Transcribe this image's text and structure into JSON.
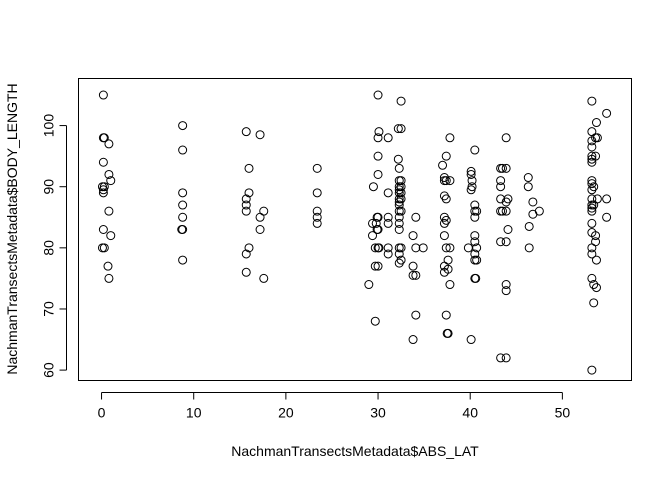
{
  "chart_data": {
    "type": "scatter",
    "title": "",
    "xlabel": "NachmanTransectsMetadata$ABS_LAT",
    "ylabel": "NachmanTransectsMetadata$BODY_LENGTH",
    "xlim": [
      -2.5,
      57.5
    ],
    "ylim": [
      58.3,
      107.7
    ],
    "xticks": [
      0,
      10,
      20,
      30,
      40,
      50
    ],
    "yticks": [
      60,
      70,
      80,
      90,
      100
    ],
    "grid": false,
    "legend": "none",
    "points": [
      {
        "x": 0.2,
        "y": 105
      },
      {
        "x": 0.2,
        "y": 98
      },
      {
        "x": 0.3,
        "y": 98
      },
      {
        "x": 0.2,
        "y": 94
      },
      {
        "x": 0.1,
        "y": 90
      },
      {
        "x": 0.2,
        "y": 89.5
      },
      {
        "x": 0.3,
        "y": 90
      },
      {
        "x": 0.2,
        "y": 89
      },
      {
        "x": 0.2,
        "y": 83
      },
      {
        "x": 0.1,
        "y": 80
      },
      {
        "x": 0.3,
        "y": 80
      },
      {
        "x": 0.8,
        "y": 97
      },
      {
        "x": 0.8,
        "y": 92
      },
      {
        "x": 1.0,
        "y": 91
      },
      {
        "x": 0.8,
        "y": 86
      },
      {
        "x": 1.0,
        "y": 82
      },
      {
        "x": 0.7,
        "y": 77
      },
      {
        "x": 0.8,
        "y": 75
      },
      {
        "x": 8.8,
        "y": 100
      },
      {
        "x": 8.8,
        "y": 96
      },
      {
        "x": 8.8,
        "y": 89
      },
      {
        "x": 8.8,
        "y": 87
      },
      {
        "x": 8.8,
        "y": 85
      },
      {
        "x": 8.7,
        "y": 83
      },
      {
        "x": 8.8,
        "y": 83
      },
      {
        "x": 8.8,
        "y": 78
      },
      {
        "x": 15.7,
        "y": 99
      },
      {
        "x": 15.7,
        "y": 88
      },
      {
        "x": 15.7,
        "y": 87
      },
      {
        "x": 15.7,
        "y": 86
      },
      {
        "x": 15.7,
        "y": 79
      },
      {
        "x": 15.7,
        "y": 76
      },
      {
        "x": 16.0,
        "y": 93
      },
      {
        "x": 16.0,
        "y": 89
      },
      {
        "x": 16.0,
        "y": 80
      },
      {
        "x": 17.2,
        "y": 98.5
      },
      {
        "x": 17.2,
        "y": 85
      },
      {
        "x": 17.2,
        "y": 83
      },
      {
        "x": 17.6,
        "y": 86
      },
      {
        "x": 17.6,
        "y": 75
      },
      {
        "x": 23.4,
        "y": 93
      },
      {
        "x": 23.4,
        "y": 89
      },
      {
        "x": 23.4,
        "y": 86
      },
      {
        "x": 23.4,
        "y": 85
      },
      {
        "x": 23.4,
        "y": 84
      },
      {
        "x": 29.0,
        "y": 74
      },
      {
        "x": 29.4,
        "y": 84
      },
      {
        "x": 29.4,
        "y": 82
      },
      {
        "x": 29.5,
        "y": 90
      },
      {
        "x": 29.7,
        "y": 68
      },
      {
        "x": 29.7,
        "y": 80
      },
      {
        "x": 29.7,
        "y": 77
      },
      {
        "x": 29.8,
        "y": 84
      },
      {
        "x": 29.9,
        "y": 85
      },
      {
        "x": 29.9,
        "y": 83
      },
      {
        "x": 30.0,
        "y": 105
      },
      {
        "x": 30.0,
        "y": 98
      },
      {
        "x": 30.0,
        "y": 95
      },
      {
        "x": 30.0,
        "y": 92
      },
      {
        "x": 30.0,
        "y": 85
      },
      {
        "x": 30.0,
        "y": 83
      },
      {
        "x": 30.0,
        "y": 80
      },
      {
        "x": 30.0,
        "y": 77
      },
      {
        "x": 30.1,
        "y": 99
      },
      {
        "x": 30.1,
        "y": 80
      },
      {
        "x": 31.1,
        "y": 98
      },
      {
        "x": 31.1,
        "y": 89
      },
      {
        "x": 31.1,
        "y": 85
      },
      {
        "x": 31.1,
        "y": 84
      },
      {
        "x": 31.1,
        "y": 80
      },
      {
        "x": 31.1,
        "y": 79
      },
      {
        "x": 32.2,
        "y": 99.5
      },
      {
        "x": 32.2,
        "y": 94.5
      },
      {
        "x": 32.3,
        "y": 93
      },
      {
        "x": 32.3,
        "y": 91
      },
      {
        "x": 32.3,
        "y": 90
      },
      {
        "x": 32.3,
        "y": 89.5
      },
      {
        "x": 32.3,
        "y": 89
      },
      {
        "x": 32.3,
        "y": 88
      },
      {
        "x": 32.3,
        "y": 87.5
      },
      {
        "x": 32.3,
        "y": 87
      },
      {
        "x": 32.3,
        "y": 86
      },
      {
        "x": 32.3,
        "y": 85
      },
      {
        "x": 32.3,
        "y": 84
      },
      {
        "x": 32.3,
        "y": 83
      },
      {
        "x": 32.3,
        "y": 80
      },
      {
        "x": 32.3,
        "y": 79
      },
      {
        "x": 32.3,
        "y": 77.5
      },
      {
        "x": 32.5,
        "y": 99.5
      },
      {
        "x": 32.5,
        "y": 104
      },
      {
        "x": 32.5,
        "y": 91
      },
      {
        "x": 32.5,
        "y": 90
      },
      {
        "x": 32.5,
        "y": 89
      },
      {
        "x": 32.5,
        "y": 88
      },
      {
        "x": 32.5,
        "y": 86
      },
      {
        "x": 32.5,
        "y": 80
      },
      {
        "x": 32.5,
        "y": 78
      },
      {
        "x": 33.8,
        "y": 82
      },
      {
        "x": 33.8,
        "y": 77
      },
      {
        "x": 33.8,
        "y": 75.5
      },
      {
        "x": 33.8,
        "y": 65
      },
      {
        "x": 34.1,
        "y": 85
      },
      {
        "x": 34.1,
        "y": 80
      },
      {
        "x": 34.1,
        "y": 75.5
      },
      {
        "x": 34.1,
        "y": 69
      },
      {
        "x": 34.9,
        "y": 80
      },
      {
        "x": 37.0,
        "y": 93.5
      },
      {
        "x": 37.2,
        "y": 91.5
      },
      {
        "x": 37.2,
        "y": 91
      },
      {
        "x": 37.2,
        "y": 88.5
      },
      {
        "x": 37.2,
        "y": 85
      },
      {
        "x": 37.2,
        "y": 84
      },
      {
        "x": 37.2,
        "y": 82
      },
      {
        "x": 37.2,
        "y": 77
      },
      {
        "x": 37.2,
        "y": 76
      },
      {
        "x": 37.4,
        "y": 95
      },
      {
        "x": 37.4,
        "y": 91
      },
      {
        "x": 37.4,
        "y": 88
      },
      {
        "x": 37.4,
        "y": 84.5
      },
      {
        "x": 37.4,
        "y": 80
      },
      {
        "x": 37.4,
        "y": 69
      },
      {
        "x": 37.5,
        "y": 66
      },
      {
        "x": 37.6,
        "y": 66
      },
      {
        "x": 37.6,
        "y": 78
      },
      {
        "x": 37.6,
        "y": 76.5
      },
      {
        "x": 37.8,
        "y": 98
      },
      {
        "x": 37.8,
        "y": 91
      },
      {
        "x": 37.8,
        "y": 80
      },
      {
        "x": 37.8,
        "y": 74
      },
      {
        "x": 39.8,
        "y": 80
      },
      {
        "x": 40.1,
        "y": 92.5
      },
      {
        "x": 40.1,
        "y": 92
      },
      {
        "x": 40.1,
        "y": 89.5
      },
      {
        "x": 40.1,
        "y": 65
      },
      {
        "x": 40.2,
        "y": 91
      },
      {
        "x": 40.2,
        "y": 90
      },
      {
        "x": 40.5,
        "y": 96
      },
      {
        "x": 40.5,
        "y": 87
      },
      {
        "x": 40.5,
        "y": 86
      },
      {
        "x": 40.5,
        "y": 85
      },
      {
        "x": 40.5,
        "y": 82
      },
      {
        "x": 40.5,
        "y": 81
      },
      {
        "x": 40.5,
        "y": 79
      },
      {
        "x": 40.5,
        "y": 78
      },
      {
        "x": 40.5,
        "y": 75
      },
      {
        "x": 40.6,
        "y": 75
      },
      {
        "x": 40.7,
        "y": 86
      },
      {
        "x": 40.7,
        "y": 80
      },
      {
        "x": 40.7,
        "y": 78
      },
      {
        "x": 43.3,
        "y": 93
      },
      {
        "x": 43.3,
        "y": 91
      },
      {
        "x": 43.3,
        "y": 90
      },
      {
        "x": 43.3,
        "y": 88
      },
      {
        "x": 43.3,
        "y": 86
      },
      {
        "x": 43.3,
        "y": 81
      },
      {
        "x": 43.3,
        "y": 62
      },
      {
        "x": 43.5,
        "y": 93
      },
      {
        "x": 43.5,
        "y": 86
      },
      {
        "x": 43.9,
        "y": 98
      },
      {
        "x": 43.9,
        "y": 93
      },
      {
        "x": 43.9,
        "y": 87.5
      },
      {
        "x": 43.9,
        "y": 86
      },
      {
        "x": 43.9,
        "y": 81
      },
      {
        "x": 43.9,
        "y": 74
      },
      {
        "x": 43.9,
        "y": 73
      },
      {
        "x": 43.9,
        "y": 62
      },
      {
        "x": 44.1,
        "y": 88
      },
      {
        "x": 44.1,
        "y": 83
      },
      {
        "x": 46.3,
        "y": 91.5
      },
      {
        "x": 46.3,
        "y": 90
      },
      {
        "x": 46.4,
        "y": 83.5
      },
      {
        "x": 46.4,
        "y": 80
      },
      {
        "x": 46.8,
        "y": 87.5
      },
      {
        "x": 46.8,
        "y": 85.5
      },
      {
        "x": 47.5,
        "y": 86
      },
      {
        "x": 53.2,
        "y": 104
      },
      {
        "x": 53.2,
        "y": 99
      },
      {
        "x": 53.2,
        "y": 97.5
      },
      {
        "x": 53.2,
        "y": 96.5
      },
      {
        "x": 53.2,
        "y": 95
      },
      {
        "x": 53.2,
        "y": 94.5
      },
      {
        "x": 53.2,
        "y": 94
      },
      {
        "x": 53.2,
        "y": 91
      },
      {
        "x": 53.2,
        "y": 90.5
      },
      {
        "x": 53.2,
        "y": 89.5
      },
      {
        "x": 53.2,
        "y": 88
      },
      {
        "x": 53.2,
        "y": 87
      },
      {
        "x": 53.2,
        "y": 86.5
      },
      {
        "x": 53.2,
        "y": 86
      },
      {
        "x": 53.2,
        "y": 84
      },
      {
        "x": 53.2,
        "y": 82.5
      },
      {
        "x": 53.2,
        "y": 80
      },
      {
        "x": 53.2,
        "y": 79
      },
      {
        "x": 53.2,
        "y": 75
      },
      {
        "x": 53.2,
        "y": 60
      },
      {
        "x": 53.4,
        "y": 71
      },
      {
        "x": 53.4,
        "y": 74
      },
      {
        "x": 53.4,
        "y": 90
      },
      {
        "x": 53.4,
        "y": 87
      },
      {
        "x": 53.6,
        "y": 98
      },
      {
        "x": 53.6,
        "y": 95
      },
      {
        "x": 53.6,
        "y": 82
      },
      {
        "x": 53.6,
        "y": 81
      },
      {
        "x": 53.7,
        "y": 78
      },
      {
        "x": 53.7,
        "y": 73.5
      },
      {
        "x": 53.7,
        "y": 100.5
      },
      {
        "x": 53.8,
        "y": 98
      },
      {
        "x": 53.8,
        "y": 88
      },
      {
        "x": 54.8,
        "y": 102
      },
      {
        "x": 54.8,
        "y": 88
      },
      {
        "x": 54.8,
        "y": 85
      }
    ]
  }
}
